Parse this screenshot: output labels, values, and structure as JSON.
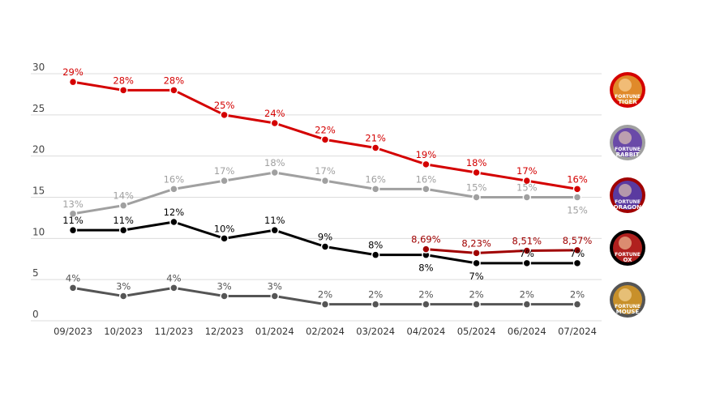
{
  "chart_data": {
    "type": "line",
    "title": "",
    "xlabel": "",
    "ylabel": "",
    "ylim": [
      0,
      30
    ],
    "yticks": [
      0,
      5,
      10,
      15,
      20,
      25,
      30
    ],
    "grid": true,
    "legend": "right (game icons)",
    "categories": [
      "09/2023",
      "10/2023",
      "11/2023",
      "12/2023",
      "01/2024",
      "02/2024",
      "03/2024",
      "04/2024",
      "05/2024",
      "06/2024",
      "07/2024"
    ],
    "series": [
      {
        "name": "Fortune Tiger",
        "color": "#d40000",
        "values": [
          29,
          28,
          28,
          25,
          24,
          22,
          21,
          19,
          18,
          17,
          16
        ],
        "labels": [
          "29%",
          "28%",
          "28%",
          "25%",
          "24%",
          "22%",
          "21%",
          "19%",
          "18%",
          "17%",
          "16%"
        ],
        "label_pos": [
          "above",
          "above",
          "above",
          "above",
          "above",
          "above",
          "above",
          "above",
          "above",
          "above",
          "above"
        ]
      },
      {
        "name": "Fortune Rabbit",
        "color": "#a0a0a0",
        "values": [
          13,
          14,
          16,
          17,
          18,
          17,
          16,
          16,
          15,
          15,
          15
        ],
        "labels": [
          "13%",
          "14%",
          "16%",
          "17%",
          "18%",
          "17%",
          "16%",
          "16%",
          "15%",
          "15%",
          "15%"
        ],
        "label_pos": [
          "above",
          "above",
          "above",
          "above",
          "above",
          "above",
          "above",
          "above",
          "above",
          "above",
          "below"
        ]
      },
      {
        "name": "Fortune Dragon",
        "color": "#a00000",
        "values": [
          null,
          null,
          null,
          null,
          null,
          null,
          null,
          8.69,
          8.23,
          8.51,
          8.57
        ],
        "labels": [
          "",
          "",
          "",
          "",
          "",
          "",
          "",
          "8,69%",
          "8,23%",
          "8,51%",
          "8,57%"
        ],
        "label_pos": [
          "above",
          "above",
          "above",
          "above",
          "above",
          "above",
          "above",
          "above",
          "above",
          "above",
          "above"
        ]
      },
      {
        "name": "Fortune Ox",
        "color": "#000000",
        "values": [
          11,
          11,
          12,
          10,
          11,
          9,
          8,
          8,
          7,
          7,
          7
        ],
        "labels": [
          "11%",
          "11%",
          "12%",
          "10%",
          "11%",
          "9%",
          "8%",
          "8%",
          "7%",
          "7%",
          "7%"
        ],
        "label_pos": [
          "above",
          "above",
          "above",
          "above",
          "above",
          "above",
          "above",
          "below",
          "below",
          "above",
          "above"
        ]
      },
      {
        "name": "Fortune Mouse",
        "color": "#555555",
        "values": [
          4,
          3,
          4,
          3,
          3,
          2,
          2,
          2,
          2,
          2,
          2
        ],
        "labels": [
          "4%",
          "3%",
          "4%",
          "3%",
          "3%",
          "2%",
          "2%",
          "2%",
          "2%",
          "2%",
          "2%"
        ],
        "label_pos": [
          "above",
          "above",
          "above",
          "above",
          "above",
          "above",
          "above",
          "above",
          "above",
          "above",
          "above"
        ]
      }
    ]
  },
  "legend_icons": [
    {
      "name": "Fortune Tiger",
      "line1": "FORTUNE",
      "line2": "TIGER",
      "ring_color": "#d40000",
      "fill_color": "#e08a2a"
    },
    {
      "name": "Fortune Rabbit",
      "line1": "FORTUNE",
      "line2": "RABBIT",
      "ring_color": "#a0a0a0",
      "fill_color": "#6a4aa8"
    },
    {
      "name": "Fortune Dragon",
      "line1": "FORTUNE",
      "line2": "DRAGON",
      "ring_color": "#a00000",
      "fill_color": "#5a3aa0"
    },
    {
      "name": "Fortune Ox",
      "line1": "FORTUNE",
      "line2": "OX",
      "ring_color": "#000000",
      "fill_color": "#b0201e"
    },
    {
      "name": "Fortune Mouse",
      "line1": "FORTUNE",
      "line2": "MOUSE",
      "ring_color": "#555555",
      "fill_color": "#c8902a"
    }
  ]
}
